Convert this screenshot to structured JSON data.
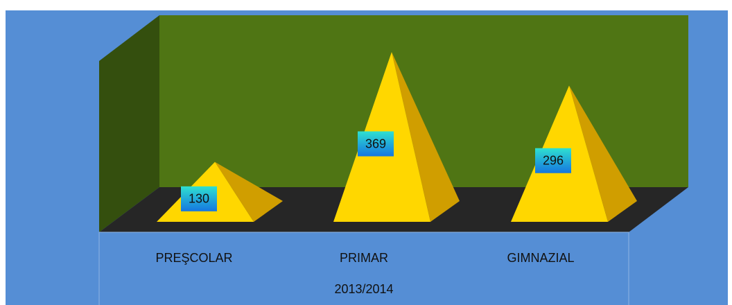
{
  "chart_data": {
    "type": "pyramid",
    "categories": [
      "PREŞCOLAR",
      "PRIMAR",
      "GIMNAZIAL"
    ],
    "values": [
      130,
      369,
      296
    ],
    "x_label": "2013/2014",
    "color": "#ffd700"
  }
}
